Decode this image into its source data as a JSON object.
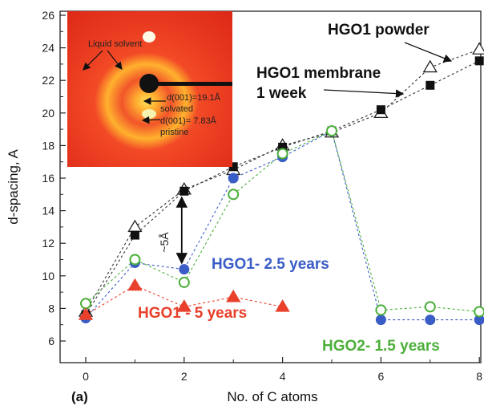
{
  "chart_data": {
    "type": "scatter",
    "panel_label": "(a)",
    "xlabel": "No. of C atoms",
    "ylabel": "d-spacing, A",
    "xlim": [
      -0.5,
      8.1
    ],
    "ylim": [
      5,
      27
    ],
    "xticks": [
      0,
      2,
      4,
      6,
      8
    ],
    "yticks": [
      6,
      8,
      10,
      12,
      14,
      16,
      18,
      20,
      22,
      24,
      26
    ],
    "grid": false,
    "series": [
      {
        "name": "HGO1 powder",
        "marker": "triangle-open",
        "color": "#222222",
        "line": "#333333",
        "points": [
          [
            0,
            7.8
          ],
          [
            1,
            13.0
          ],
          [
            2,
            15.3
          ],
          [
            3,
            16.5
          ],
          [
            4,
            18.0
          ],
          [
            5,
            18.8
          ],
          [
            6,
            20.0
          ],
          [
            7,
            22.8
          ],
          [
            8,
            23.9
          ]
        ]
      },
      {
        "name": "HGO1 membrane 1 week",
        "marker": "square-filled",
        "color": "#111111",
        "line": "#333333",
        "points": [
          [
            0,
            7.6
          ],
          [
            1,
            12.5
          ],
          [
            2,
            15.2
          ],
          [
            3,
            16.7
          ],
          [
            4,
            17.9
          ],
          [
            5,
            18.9
          ],
          [
            6,
            20.2
          ],
          [
            7,
            21.7
          ],
          [
            8,
            23.2
          ]
        ]
      },
      {
        "name": "HGO1- 2.5 years",
        "marker": "circle-filled",
        "color": "#3a5cc6",
        "line": "#3a5cc6",
        "points": [
          [
            0,
            7.4
          ],
          [
            1,
            10.8
          ],
          [
            2,
            10.4
          ],
          [
            3,
            16.0
          ],
          [
            4,
            17.3
          ],
          [
            5,
            18.9
          ],
          [
            6,
            7.3
          ],
          [
            7,
            7.3
          ],
          [
            8,
            7.3
          ]
        ]
      },
      {
        "name": "HGO2- 1.5 years",
        "marker": "circle-open",
        "color": "#4caf3a",
        "line": "#4caf3a",
        "points": [
          [
            0,
            8.3
          ],
          [
            1,
            11.0
          ],
          [
            2,
            9.6
          ],
          [
            3,
            15.0
          ],
          [
            4,
            17.5
          ],
          [
            5,
            18.9
          ],
          [
            6,
            7.9
          ],
          [
            7,
            8.1
          ],
          [
            8,
            7.8
          ]
        ]
      },
      {
        "name": "HGO1 - 5 years",
        "marker": "triangle-filled",
        "color": "#e8402a",
        "line": "#e8402a",
        "points": [
          [
            0,
            7.6
          ],
          [
            1,
            9.4
          ],
          [
            2,
            8.1
          ],
          [
            3,
            8.7
          ],
          [
            4,
            8.1
          ]
        ]
      }
    ],
    "arrow_annotation": {
      "label": "~5Å",
      "x": 2,
      "y_from": 10.4,
      "y_to": 15.3
    },
    "inset": {
      "labels": {
        "liquid_solvent": "Liquid solvent",
        "solvated_value": "d(001)=19.1Å",
        "solvated": "solvated",
        "pristine_value": "d(001)= 7.83Å",
        "pristine": "pristine"
      }
    }
  }
}
